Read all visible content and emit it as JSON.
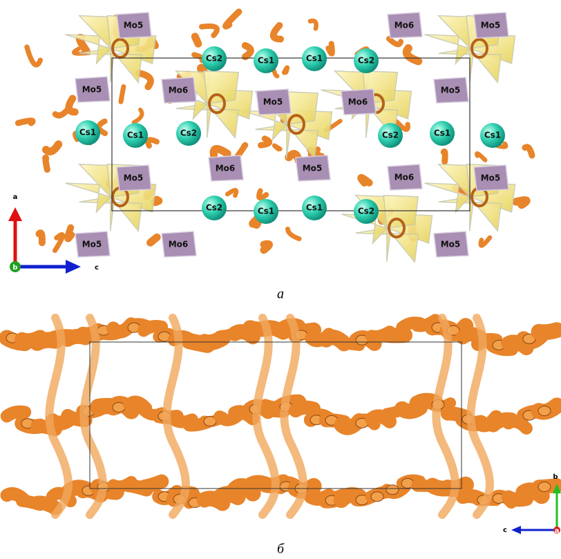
{
  "panel_a": {
    "caption": "а",
    "atom_labels": [
      "Mo5",
      "Mo6",
      "Mo5",
      "Cs2",
      "Cs1",
      "Cs1",
      "Cs2",
      "Mo5",
      "Mo6",
      "Mo5",
      "Mo6",
      "Mo5",
      "Cs1",
      "Cs1",
      "Cs2",
      "Cs2",
      "Cs1",
      "Cs1",
      "Mo5",
      "Mo6",
      "Mo5",
      "Mo6",
      "Mo5",
      "Cs2",
      "Cs1",
      "Cs1",
      "Cs2",
      "Mo5",
      "Mo6",
      "Mo5"
    ],
    "axes": {
      "vertical": "a",
      "out": "b",
      "horizontal": "c"
    }
  },
  "panel_b": {
    "caption": "б",
    "axes": {
      "vertical": "b",
      "out": "a",
      "horizontal": "c"
    }
  }
}
